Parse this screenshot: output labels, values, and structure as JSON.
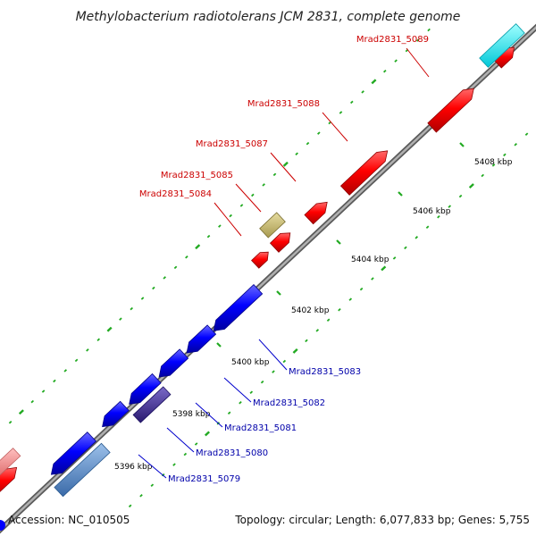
{
  "title": "Methylobacterium radiotolerans JCM 2831, complete genome",
  "footer": {
    "accession": "Accession: NC_010505",
    "summary": "Topology: circular; Length: 6,077,833 bp; Genes: 5,755"
  },
  "colors": {
    "forward_gene": "#ff0000",
    "reverse_gene": "#0000ff",
    "forward_label": "#cc0000",
    "reverse_label": "#0000aa",
    "backbone": "#888888",
    "tick_dots": "#22aa22",
    "leader_forward": "#cc0000",
    "leader_reverse": "#0000cc",
    "highlight_cyan": "#00ffff",
    "highlight_khaki": "#c8bd74",
    "highlight_steel": "#5b8fd0",
    "highlight_purple": "#4a3a9a",
    "faded_red": "#f08080"
  },
  "scale_ticks": [
    "5396 kbp",
    "5398 kbp",
    "5400 kbp",
    "5402 kbp",
    "5404 kbp",
    "5406 kbp",
    "5408 kbp"
  ],
  "forward_genes": [
    "Mrad2831_5084",
    "Mrad2831_5085",
    "Mrad2831_5087",
    "Mrad2831_5088",
    "Mrad2831_5089"
  ],
  "reverse_genes": [
    "Mrad2831_5079",
    "Mrad2831_5080",
    "Mrad2831_5081",
    "Mrad2831_5082",
    "Mrad2831_5083"
  ]
}
